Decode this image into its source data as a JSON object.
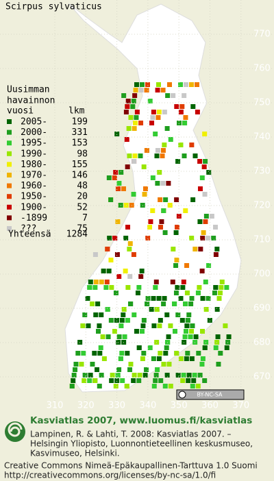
{
  "title": "Scirpus sylvaticus",
  "legend": {
    "heading": [
      "Uusimman",
      "havainnon"
    ],
    "col_year": "vuosi",
    "col_count": "lkm",
    "rows": [
      {
        "label": "2005-",
        "count": 199,
        "color": "#006400"
      },
      {
        "label": "2000-",
        "count": 331,
        "color": "#1e9e1e"
      },
      {
        "label": "1995-",
        "count": 153,
        "color": "#33cc33"
      },
      {
        "label": "1990-",
        "count": 98,
        "color": "#99e600"
      },
      {
        "label": "1980-",
        "count": 155,
        "color": "#f0f000"
      },
      {
        "label": "1970-",
        "count": 146,
        "color": "#f0b400"
      },
      {
        "label": "1960-",
        "count": 48,
        "color": "#f07800"
      },
      {
        "label": "1950-",
        "count": 20,
        "color": "#e03c00"
      },
      {
        "label": "1900-",
        "count": 52,
        "color": "#c80000"
      },
      {
        "label": "-1899",
        "count": 7,
        "color": "#800000"
      },
      {
        "label": "???",
        "count": 75,
        "color": "#c8c8c8"
      }
    ],
    "total_label": "Yhteensä",
    "total": 1284
  },
  "grid": {
    "y_labels": [
      770,
      760,
      750,
      740,
      730,
      720,
      710,
      700,
      690,
      680,
      670
    ],
    "x_labels": [
      310,
      320,
      330,
      340,
      350,
      360,
      370
    ]
  },
  "license_badge": "BY-NC-SA",
  "footer": {
    "brand": "Kasviatlas 2007, www.luomus.fi/kasviatlas",
    "citation": [
      "Lampinen, R. & Lahti, T. 2008: Kasviatlas 2007. –",
      "Helsingin Yliopisto, Luonnontieteellinen keskusmuseo,",
      "Kasvimuseo, Helsinki."
    ],
    "license": "Creative Commons Nimeä-Epäkaupallinen-Tarttuva 1.0 Suomi",
    "url": "http://creativecommons.org/licenses/by-nc-sa/1.0/fi"
  }
}
